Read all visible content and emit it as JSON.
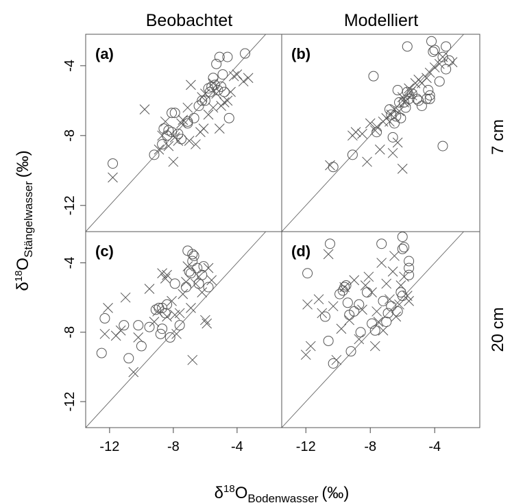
{
  "figure": {
    "col_titles": [
      "Beobachtet",
      "Modelliert"
    ],
    "row_labels": [
      "7 cm",
      "20 cm"
    ],
    "ylabel": {
      "prefix": "δ",
      "sup": "18",
      "main": "O",
      "sub": "Stängelwasser",
      "unit": "(‰)"
    },
    "xlabel": {
      "prefix": "δ",
      "sup": "18",
      "main": "O",
      "sub": "Bodenwasser",
      "unit": "(‰)"
    }
  },
  "chart_data": [
    {
      "type": "scatter",
      "title": "(a)",
      "xlim": [
        -13.5,
        -1.2
      ],
      "ylim": [
        -13.5,
        -2.2
      ],
      "reference_line": "1:1",
      "grid": false,
      "xticks": [
        "-12",
        "-8",
        "-4"
      ],
      "yticks": [
        "-4",
        "-8",
        "-12"
      ],
      "series": [
        {
          "marker": "circle",
          "points": [
            [
              -11.8,
              -9.6
            ],
            [
              -9.2,
              -9.1
            ],
            [
              -8.7,
              -8.5
            ],
            [
              -8.6,
              -7.6
            ],
            [
              -8.4,
              -8
            ],
            [
              -8.3,
              -7.7
            ],
            [
              -8.1,
              -7.8
            ],
            [
              -8.1,
              -6.7
            ],
            [
              -7.9,
              -6.7
            ],
            [
              -7.7,
              -7.9
            ],
            [
              -7.5,
              -8.2
            ],
            [
              -7.1,
              -7.2
            ],
            [
              -7.1,
              -7.3
            ],
            [
              -6.7,
              -7
            ],
            [
              -6.4,
              -6.3
            ],
            [
              -6.2,
              -6
            ],
            [
              -6,
              -6
            ],
            [
              -5.8,
              -5.3
            ],
            [
              -5.7,
              -5.5
            ],
            [
              -5.6,
              -5.2
            ],
            [
              -5.5,
              -4.7
            ],
            [
              -5.4,
              -5.1
            ],
            [
              -5.3,
              -3.9
            ],
            [
              -5.2,
              -5.4
            ],
            [
              -5,
              -5.2
            ],
            [
              -4.9,
              -4.5
            ],
            [
              -4.8,
              -5.5
            ],
            [
              -4.6,
              -3.5
            ],
            [
              -4.5,
              -7
            ],
            [
              -3.5,
              -3.3
            ],
            [
              -5.1,
              -3.5
            ]
          ]
        },
        {
          "marker": "x",
          "points": [
            [
              -11.8,
              -10.4
            ],
            [
              -9.8,
              -6.5
            ],
            [
              -8.9,
              -8.8
            ],
            [
              -8.7,
              -8
            ],
            [
              -8.5,
              -7.2
            ],
            [
              -8.3,
              -8.6
            ],
            [
              -8,
              -9.5
            ],
            [
              -7.9,
              -8.1
            ],
            [
              -7.7,
              -8.3
            ],
            [
              -7.5,
              -7.3
            ],
            [
              -7.4,
              -7.1
            ],
            [
              -7.1,
              -6.4
            ],
            [
              -7,
              -8.3
            ],
            [
              -6.9,
              -5.1
            ],
            [
              -6.6,
              -8.5
            ],
            [
              -6.3,
              -7.8
            ],
            [
              -6.1,
              -7.6
            ],
            [
              -6,
              -5.6
            ],
            [
              -5.8,
              -6.8
            ],
            [
              -5.5,
              -6.4
            ],
            [
              -5.3,
              -5.6
            ],
            [
              -5.1,
              -7.6
            ],
            [
              -5,
              -6.3
            ],
            [
              -4.8,
              -6.1
            ],
            [
              -4.6,
              -6
            ],
            [
              -4.4,
              -5.5
            ],
            [
              -4.2,
              -4.6
            ],
            [
              -4,
              -4.5
            ],
            [
              -3.6,
              -4.9
            ],
            [
              -3.3,
              -4.7
            ],
            [
              -5.5,
              -5
            ],
            [
              -6.2,
              -5.8
            ]
          ]
        }
      ]
    },
    {
      "type": "scatter",
      "title": "(b)",
      "xlim": [
        -13.5,
        -1.2
      ],
      "ylim": [
        -13.5,
        -2.2
      ],
      "reference_line": "1:1",
      "grid": false,
      "xticks": [
        "-12",
        "-8",
        "-4"
      ],
      "yticks": [
        "-4",
        "-8",
        "-12"
      ],
      "series": [
        {
          "marker": "circle",
          "points": [
            [
              -10.3,
              -9.8
            ],
            [
              -9.1,
              -9.1
            ],
            [
              -7.8,
              -4.6
            ],
            [
              -7.6,
              -7.8
            ],
            [
              -6.8,
              -6.5
            ],
            [
              -6.7,
              -6.8
            ],
            [
              -6.6,
              -8.1
            ],
            [
              -6.5,
              -7.3
            ],
            [
              -6.4,
              -6.9
            ],
            [
              -6.3,
              -5.4
            ],
            [
              -6.2,
              -6.1
            ],
            [
              -6.1,
              -7
            ],
            [
              -5.9,
              -6.1
            ],
            [
              -5.7,
              -5.5
            ],
            [
              -5.6,
              -5.9
            ],
            [
              -5.4,
              -5.6
            ],
            [
              -5.1,
              -5.9
            ],
            [
              -5,
              -6
            ],
            [
              -4.8,
              -6.3
            ],
            [
              -4.5,
              -5.9
            ],
            [
              -4.4,
              -5.4
            ],
            [
              -4.3,
              -5.7
            ],
            [
              -4.2,
              -2.6
            ],
            [
              -4.1,
              -3.2
            ],
            [
              -4,
              -3.1
            ],
            [
              -3.7,
              -4.9
            ],
            [
              -3.5,
              -3.5
            ],
            [
              -3.5,
              -8.6
            ],
            [
              -3.3,
              -4.2
            ],
            [
              -3.1,
              -3.7
            ],
            [
              -3.3,
              -2.9
            ],
            [
              -5.7,
              -2.9
            ],
            [
              -4.3,
              -5.9
            ],
            [
              -5.8,
              -6.4
            ]
          ]
        },
        {
          "marker": "x",
          "points": [
            [
              -10.5,
              -9.7
            ],
            [
              -9.1,
              -8
            ],
            [
              -8.9,
              -7.8
            ],
            [
              -8.5,
              -7.9
            ],
            [
              -8.2,
              -9.5
            ],
            [
              -8,
              -7.3
            ],
            [
              -7.7,
              -7.7
            ],
            [
              -7.4,
              -8.8
            ],
            [
              -7.2,
              -7.2
            ],
            [
              -7,
              -7
            ],
            [
              -6.8,
              -7.2
            ],
            [
              -6.6,
              -9
            ],
            [
              -6.5,
              -6.5
            ],
            [
              -6.3,
              -8.4
            ],
            [
              -6.2,
              -6.6
            ],
            [
              -6,
              -5.8
            ],
            [
              -5.8,
              -6
            ],
            [
              -5.6,
              -5.3
            ],
            [
              -5.5,
              -5.5
            ],
            [
              -5.4,
              -5.7
            ],
            [
              -5.2,
              -5
            ],
            [
              -5,
              -4.8
            ],
            [
              -4.8,
              -5
            ],
            [
              -4.5,
              -4.7
            ],
            [
              -4.3,
              -4.4
            ],
            [
              -4,
              -4.1
            ],
            [
              -3.7,
              -3.9
            ],
            [
              -3.5,
              -3.5
            ],
            [
              -2.9,
              -3.8
            ],
            [
              -6,
              -9.9
            ],
            [
              -5.9,
              -6.1
            ],
            [
              -6.7,
              -6.8
            ],
            [
              -7.6,
              -7.5
            ]
          ]
        }
      ]
    },
    {
      "type": "scatter",
      "title": "(c)",
      "xlim": [
        -13.5,
        -1.2
      ],
      "ylim": [
        -13.5,
        -2.2
      ],
      "reference_line": "1:1",
      "grid": false,
      "xticks": [
        "-12",
        "-8",
        "-4"
      ],
      "yticks": [
        "-4",
        "-8",
        "-12"
      ],
      "series": [
        {
          "marker": "circle",
          "points": [
            [
              -12.5,
              -9.2
            ],
            [
              -12.3,
              -7.2
            ],
            [
              -11.1,
              -7.6
            ],
            [
              -10.8,
              -9.5
            ],
            [
              -10.2,
              -7.6
            ],
            [
              -10,
              -8.8
            ],
            [
              -9.5,
              -7.7
            ],
            [
              -9.1,
              -6.7
            ],
            [
              -8.9,
              -6.6
            ],
            [
              -8.8,
              -8.1
            ],
            [
              -8.7,
              -7.8
            ],
            [
              -8.5,
              -6.9
            ],
            [
              -8.4,
              -6.4
            ],
            [
              -8.2,
              -8.3
            ],
            [
              -7.9,
              -5.2
            ],
            [
              -7.6,
              -7.6
            ],
            [
              -7.2,
              -5.4
            ],
            [
              -7.1,
              -3.3
            ],
            [
              -7,
              -4.5
            ],
            [
              -6.9,
              -4.6
            ],
            [
              -6.8,
              -3.9
            ],
            [
              -6.7,
              -3.6
            ],
            [
              -6.5,
              -4.3
            ],
            [
              -6.2,
              -4.7
            ],
            [
              -6.1,
              -4.2
            ],
            [
              -5.8,
              -5.4
            ],
            [
              -6.8,
              -3.5
            ],
            [
              -6.4,
              -5.2
            ],
            [
              -8.7,
              -6.6
            ]
          ]
        },
        {
          "marker": "x",
          "points": [
            [
              -12.3,
              -8.1
            ],
            [
              -12.1,
              -6.6
            ],
            [
              -11.6,
              -8.2
            ],
            [
              -11.3,
              -7.9
            ],
            [
              -11,
              -6
            ],
            [
              -10.5,
              -10.3
            ],
            [
              -10.2,
              -8.3
            ],
            [
              -9.5,
              -5.5
            ],
            [
              -9.2,
              -7.4
            ],
            [
              -9,
              -6.8
            ],
            [
              -8.7,
              -4.6
            ],
            [
              -8.5,
              -4.9
            ],
            [
              -8.4,
              -7.1
            ],
            [
              -8.1,
              -6.2
            ],
            [
              -7.9,
              -7
            ],
            [
              -7.8,
              -8.1
            ],
            [
              -7.6,
              -6.9
            ],
            [
              -7.4,
              -5.8
            ],
            [
              -7.2,
              -5.1
            ],
            [
              -7.1,
              -4.2
            ],
            [
              -6.9,
              -6.6
            ],
            [
              -6.8,
              -9.6
            ],
            [
              -6.6,
              -5.2
            ],
            [
              -6.4,
              -4.8
            ],
            [
              -6.2,
              -5.7
            ],
            [
              -6,
              -7.3
            ],
            [
              -5.8,
              -4.3
            ],
            [
              -5.6,
              -5
            ],
            [
              -5.9,
              -7.5
            ],
            [
              -8.4,
              -4.7
            ]
          ]
        }
      ]
    },
    {
      "type": "scatter",
      "title": "(d)",
      "xlim": [
        -13.5,
        -1.2
      ],
      "ylim": [
        -13.5,
        -2.2
      ],
      "reference_line": "1:1",
      "grid": false,
      "xticks": [
        "-12",
        "-8",
        "-4"
      ],
      "yticks": [
        "-4",
        "-8",
        "-12"
      ],
      "series": [
        {
          "marker": "circle",
          "points": [
            [
              -11.9,
              -4.6
            ],
            [
              -10.8,
              -7.1
            ],
            [
              -10.6,
              -8.5
            ],
            [
              -10.5,
              -2.9
            ],
            [
              -10.3,
              -9.8
            ],
            [
              -9.9,
              -5.8
            ],
            [
              -9.7,
              -5.6
            ],
            [
              -9.5,
              -5.3
            ],
            [
              -9.4,
              -6.3
            ],
            [
              -9.3,
              -7
            ],
            [
              -9.2,
              -9.1
            ],
            [
              -9,
              -6.8
            ],
            [
              -8.7,
              -6.4
            ],
            [
              -8.6,
              -8
            ],
            [
              -8.2,
              -5.7
            ],
            [
              -7.9,
              -7.5
            ],
            [
              -7.7,
              -7.9
            ],
            [
              -7.3,
              -2.9
            ],
            [
              -7.2,
              -6.2
            ],
            [
              -7,
              -7.4
            ],
            [
              -6.9,
              -6.9
            ],
            [
              -6.7,
              -6.5
            ],
            [
              -6.3,
              -6.8
            ],
            [
              -6.1,
              -5.7
            ],
            [
              -6,
              -5.9
            ],
            [
              -6,
              -3.2
            ],
            [
              -5.9,
              -3.1
            ],
            [
              -6,
              -2.5
            ],
            [
              -5.6,
              -3.9
            ],
            [
              -5.6,
              -4.3
            ],
            [
              -5.6,
              -4.7
            ],
            [
              -9.6,
              -5.4
            ]
          ]
        },
        {
          "marker": "x",
          "points": [
            [
              -12,
              -9.3
            ],
            [
              -11.9,
              -6.4
            ],
            [
              -11.7,
              -8.8
            ],
            [
              -11.2,
              -6.1
            ],
            [
              -11,
              -6.9
            ],
            [
              -10.6,
              -3.5
            ],
            [
              -10.3,
              -6.5
            ],
            [
              -10.1,
              -9.6
            ],
            [
              -9.8,
              -7.8
            ],
            [
              -9.6,
              -5.4
            ],
            [
              -9.3,
              -7.3
            ],
            [
              -9,
              -5
            ],
            [
              -8.7,
              -8.4
            ],
            [
              -8.5,
              -6.7
            ],
            [
              -8.3,
              -5.3
            ],
            [
              -8.1,
              -4.8
            ],
            [
              -7.9,
              -5.7
            ],
            [
              -7.7,
              -8.8
            ],
            [
              -7.5,
              -7.4
            ],
            [
              -7.3,
              -4
            ],
            [
              -7.2,
              -7.9
            ],
            [
              -7,
              -5.2
            ],
            [
              -6.8,
              -6.1
            ],
            [
              -6.6,
              -4.5
            ],
            [
              -6.4,
              -7.1
            ],
            [
              -6.2,
              -6.4
            ],
            [
              -6.1,
              -5.3
            ],
            [
              -5.9,
              -4.8
            ],
            [
              -5.7,
              -5.9
            ],
            [
              -5.6,
              -6.2
            ],
            [
              -6.5,
              -3.6
            ],
            [
              -7.6,
              -6.8
            ]
          ]
        }
      ]
    }
  ]
}
